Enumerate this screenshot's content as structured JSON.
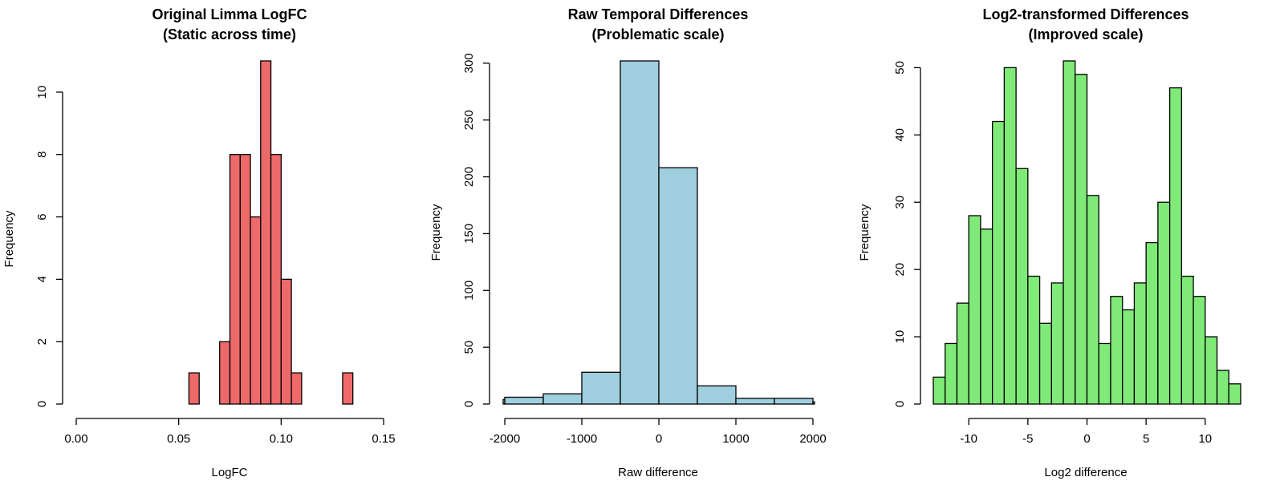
{
  "chart_data": [
    {
      "type": "histogram",
      "title": "Original Limma LogFC",
      "subtitle": "(Static across time)",
      "xlabel": "LogFC",
      "ylabel": "Frequency",
      "bar_color": "#EE6A6A",
      "xlim": [
        0.0,
        0.15
      ],
      "ylim": [
        0,
        11
      ],
      "x_ticks": [
        0.0,
        0.05,
        0.1,
        0.15
      ],
      "x_tick_labels": [
        "0.00",
        "0.05",
        "0.10",
        "0.15"
      ],
      "y_ticks": [
        0,
        2,
        4,
        6,
        8,
        10
      ],
      "y_tick_labels": [
        "0",
        "2",
        "4",
        "6",
        "8",
        "10"
      ],
      "bins": [
        {
          "from": 0.055,
          "to": 0.06,
          "count": 1
        },
        {
          "from": 0.06,
          "to": 0.065,
          "count": 0
        },
        {
          "from": 0.065,
          "to": 0.07,
          "count": 0
        },
        {
          "from": 0.07,
          "to": 0.075,
          "count": 2
        },
        {
          "from": 0.075,
          "to": 0.08,
          "count": 8
        },
        {
          "from": 0.08,
          "to": 0.085,
          "count": 8
        },
        {
          "from": 0.085,
          "to": 0.09,
          "count": 6
        },
        {
          "from": 0.09,
          "to": 0.095,
          "count": 11
        },
        {
          "from": 0.095,
          "to": 0.1,
          "count": 8
        },
        {
          "from": 0.1,
          "to": 0.105,
          "count": 4
        },
        {
          "from": 0.105,
          "to": 0.11,
          "count": 1
        },
        {
          "from": 0.11,
          "to": 0.115,
          "count": 0
        },
        {
          "from": 0.115,
          "to": 0.12,
          "count": 0
        },
        {
          "from": 0.12,
          "to": 0.125,
          "count": 0
        },
        {
          "from": 0.125,
          "to": 0.13,
          "count": 0
        },
        {
          "from": 0.13,
          "to": 0.135,
          "count": 1
        }
      ]
    },
    {
      "type": "histogram",
      "title": "Raw Temporal Differences",
      "subtitle": "(Problematic scale)",
      "xlabel": "Raw difference",
      "ylabel": "Frequency",
      "bar_color": "#9FCFDF",
      "xlim": [
        -2000,
        2000
      ],
      "ylim": [
        0,
        302
      ],
      "x_ticks": [
        -2000,
        -1000,
        0,
        1000,
        2000
      ],
      "x_tick_labels": [
        "-2000",
        "-1000",
        "0",
        "1000",
        "2000"
      ],
      "y_ticks": [
        0,
        50,
        100,
        150,
        200,
        250,
        300
      ],
      "y_tick_labels": [
        "0",
        "50",
        "100",
        "150",
        "200",
        "250",
        "300"
      ],
      "bins": [
        {
          "from": -2500,
          "to": -2000,
          "count": 4
        },
        {
          "from": -2000,
          "to": -1500,
          "count": 6
        },
        {
          "from": -1500,
          "to": -1000,
          "count": 9
        },
        {
          "from": -1000,
          "to": -500,
          "count": 28
        },
        {
          "from": -500,
          "to": 0,
          "count": 302
        },
        {
          "from": 0,
          "to": 500,
          "count": 208
        },
        {
          "from": 500,
          "to": 1000,
          "count": 16
        },
        {
          "from": 1000,
          "to": 1500,
          "count": 5
        },
        {
          "from": 1500,
          "to": 2000,
          "count": 5
        },
        {
          "from": 2000,
          "to": 2500,
          "count": 2
        }
      ]
    },
    {
      "type": "histogram",
      "title": "Log2-transformed Differences",
      "subtitle": "(Improved scale)",
      "xlabel": "Log2 difference",
      "ylabel": "Frequency",
      "bar_color": "#80EA78",
      "xlim": [
        -13,
        13
      ],
      "ylim": [
        0,
        51
      ],
      "x_ticks": [
        -10,
        -5,
        0,
        5,
        10
      ],
      "x_tick_labels": [
        "-10",
        "-5",
        "0",
        "5",
        "10"
      ],
      "y_ticks": [
        0,
        10,
        20,
        30,
        40,
        50
      ],
      "y_tick_labels": [
        "0",
        "10",
        "20",
        "30",
        "40",
        "50"
      ],
      "bins": [
        {
          "from": -13,
          "to": -12,
          "count": 4
        },
        {
          "from": -12,
          "to": -11,
          "count": 9
        },
        {
          "from": -11,
          "to": -10,
          "count": 15
        },
        {
          "from": -10,
          "to": -9,
          "count": 28
        },
        {
          "from": -9,
          "to": -8,
          "count": 26
        },
        {
          "from": -8,
          "to": -7,
          "count": 42
        },
        {
          "from": -7,
          "to": -6,
          "count": 50
        },
        {
          "from": -6,
          "to": -5,
          "count": 35
        },
        {
          "from": -5,
          "to": -4,
          "count": 19
        },
        {
          "from": -4,
          "to": -3,
          "count": 12
        },
        {
          "from": -3,
          "to": -2,
          "count": 18
        },
        {
          "from": -2,
          "to": -1,
          "count": 51
        },
        {
          "from": -1,
          "to": 0,
          "count": 49
        },
        {
          "from": 0,
          "to": 1,
          "count": 31
        },
        {
          "from": 1,
          "to": 2,
          "count": 9
        },
        {
          "from": 2,
          "to": 3,
          "count": 16
        },
        {
          "from": 3,
          "to": 4,
          "count": 14
        },
        {
          "from": 4,
          "to": 5,
          "count": 18
        },
        {
          "from": 5,
          "to": 6,
          "count": 24
        },
        {
          "from": 6,
          "to": 7,
          "count": 30
        },
        {
          "from": 7,
          "to": 8,
          "count": 47
        },
        {
          "from": 8,
          "to": 9,
          "count": 19
        },
        {
          "from": 9,
          "to": 10,
          "count": 16
        },
        {
          "from": 10,
          "to": 11,
          "count": 10
        },
        {
          "from": 11,
          "to": 12,
          "count": 5
        },
        {
          "from": 12,
          "to": 13,
          "count": 3
        }
      ]
    }
  ]
}
